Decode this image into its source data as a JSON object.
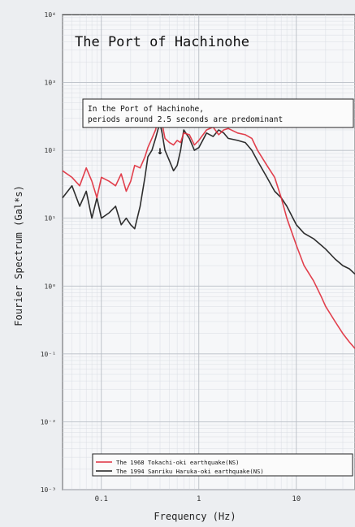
{
  "chart_data": {
    "type": "line",
    "title": "The Port of Hachinohe",
    "annotation": "In the Port of Hachinohe,\nperiods around 2.5 seconds are predominant",
    "annotation_marker": "↓",
    "annotation_marker_x": 0.4,
    "xlabel": "Frequency (Hz)",
    "ylabel": "Fourier Spectrum (Gal*s)",
    "x_scale": "log",
    "y_scale": "log",
    "xlim": [
      0.04,
      40
    ],
    "ylim": [
      0.001,
      10000
    ],
    "x_ticks": [
      {
        "value": 0.1,
        "label": "0.1"
      },
      {
        "value": 1,
        "label": "1"
      },
      {
        "value": 10,
        "label": "10"
      }
    ],
    "y_ticks": [
      {
        "value": 10000,
        "label": "10⁴"
      },
      {
        "value": 1000,
        "label": "10³"
      },
      {
        "value": 100,
        "label": "10²"
      },
      {
        "value": 10,
        "label": "10¹"
      },
      {
        "value": 1,
        "label": "10⁰"
      },
      {
        "value": 0.1,
        "label": "10⁻¹"
      },
      {
        "value": 0.01,
        "label": "10⁻²"
      },
      {
        "value": 0.001,
        "label": "10⁻³"
      }
    ],
    "grid": true,
    "legend_position": "bottom-left",
    "series": [
      {
        "name": "The 1968 Tokachi-oki earthquake(NS)",
        "color": "#e0303e",
        "x": [
          0.04,
          0.05,
          0.06,
          0.07,
          0.08,
          0.09,
          0.1,
          0.12,
          0.14,
          0.16,
          0.18,
          0.2,
          0.22,
          0.25,
          0.28,
          0.3,
          0.33,
          0.36,
          0.38,
          0.4,
          0.42,
          0.45,
          0.5,
          0.55,
          0.6,
          0.65,
          0.7,
          0.8,
          0.9,
          1.0,
          1.2,
          1.4,
          1.6,
          1.8,
          2.0,
          2.5,
          3.0,
          3.5,
          4.0,
          5.0,
          6.0,
          7.0,
          8.0,
          10.0,
          12.0,
          15.0,
          18.0,
          20.0,
          25.0,
          30.0,
          35.0,
          40.0
        ],
        "y": [
          50,
          40,
          30,
          55,
          35,
          20,
          40,
          35,
          30,
          45,
          25,
          35,
          60,
          55,
          80,
          110,
          150,
          200,
          280,
          300,
          250,
          150,
          130,
          120,
          140,
          130,
          180,
          170,
          120,
          140,
          200,
          220,
          170,
          200,
          210,
          180,
          170,
          150,
          100,
          60,
          40,
          20,
          10,
          4,
          2,
          1.2,
          0.7,
          0.5,
          0.3,
          0.2,
          0.15,
          0.12
        ]
      },
      {
        "name": "The 1994 Sanriku Haruka-oki earthquake(NS)",
        "color": "#1c1c1c",
        "x": [
          0.04,
          0.05,
          0.06,
          0.07,
          0.08,
          0.09,
          0.1,
          0.12,
          0.14,
          0.16,
          0.18,
          0.2,
          0.22,
          0.25,
          0.28,
          0.3,
          0.33,
          0.36,
          0.38,
          0.4,
          0.42,
          0.45,
          0.5,
          0.55,
          0.6,
          0.65,
          0.7,
          0.8,
          0.9,
          1.0,
          1.2,
          1.4,
          1.6,
          1.8,
          2.0,
          2.5,
          3.0,
          3.5,
          4.0,
          5.0,
          6.0,
          7.0,
          8.0,
          10.0,
          12.0,
          15.0,
          18.0,
          20.0,
          25.0,
          30.0,
          35.0,
          40.0
        ],
        "y": [
          20,
          30,
          15,
          25,
          10,
          20,
          10,
          12,
          15,
          8,
          10,
          8,
          7,
          15,
          40,
          80,
          100,
          150,
          200,
          250,
          180,
          100,
          70,
          50,
          60,
          100,
          200,
          150,
          100,
          110,
          180,
          160,
          200,
          180,
          150,
          140,
          130,
          100,
          70,
          40,
          25,
          20,
          15,
          8,
          6,
          5,
          4,
          3.5,
          2.5,
          2,
          1.8,
          1.5
        ]
      }
    ]
  }
}
